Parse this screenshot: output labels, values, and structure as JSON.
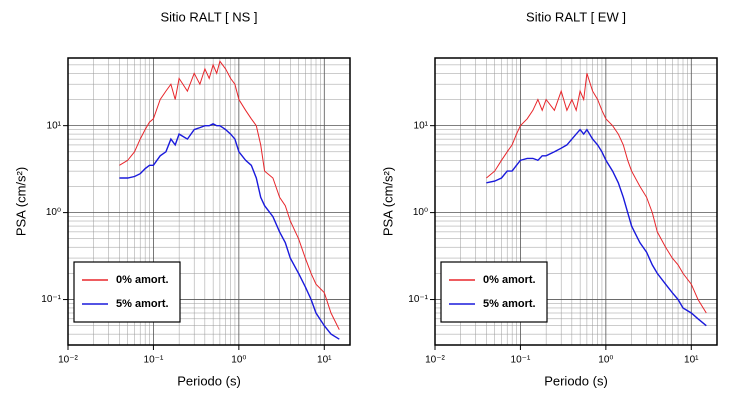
{
  "chart_data": [
    {
      "type": "line",
      "title": "Sitio RALT [ NS ]",
      "x_label": "Periodo (s)",
      "y_label": "PSA (cm/s²)",
      "x": [
        0.04,
        0.05,
        0.06,
        0.07,
        0.08,
        0.09,
        0.1,
        0.12,
        0.14,
        0.16,
        0.18,
        0.2,
        0.25,
        0.3,
        0.35,
        0.4,
        0.45,
        0.5,
        0.55,
        0.6,
        0.7,
        0.8,
        0.9,
        1.0,
        1.2,
        1.4,
        1.6,
        1.8,
        2,
        2.5,
        3,
        3.5,
        4,
        5,
        6,
        7,
        8,
        10,
        12,
        15
      ],
      "series": [
        {
          "name": "0% amort.",
          "color": "#e8262b",
          "values": [
            3.5,
            4,
            5,
            7,
            9,
            11,
            12,
            20,
            25,
            30,
            20,
            35,
            25,
            40,
            30,
            45,
            35,
            50,
            40,
            55,
            45,
            35,
            30,
            20,
            15,
            12,
            10,
            6,
            3,
            2.5,
            1.5,
            1.2,
            0.8,
            0.5,
            0.3,
            0.2,
            0.15,
            0.12,
            0.07,
            0.045
          ]
        },
        {
          "name": "5% amort.",
          "color": "#1a1adc",
          "values": [
            2.5,
            2.5,
            2.6,
            2.8,
            3.2,
            3.5,
            3.5,
            4.5,
            5,
            7,
            6,
            8,
            7,
            9,
            9.5,
            10,
            10,
            10.5,
            10,
            10,
            9,
            8,
            7,
            5,
            4,
            3.5,
            2.5,
            1.5,
            1.2,
            0.9,
            0.6,
            0.45,
            0.3,
            0.2,
            0.14,
            0.1,
            0.07,
            0.05,
            0.04,
            0.035
          ]
        }
      ],
      "log_x": true,
      "log_y": true,
      "grid": true,
      "legend": "lower left",
      "xlim": [
        0.01,
        20
      ],
      "ylim": [
        0.03,
        60
      ],
      "xticks": [
        {
          "value": 0.01,
          "label": "10⁻²"
        },
        {
          "value": 0.1,
          "label": "10⁻¹"
        },
        {
          "value": 1,
          "label": "10⁰"
        },
        {
          "value": 10,
          "label": "10¹"
        }
      ],
      "yticks": [
        {
          "value": 0.1,
          "label": "10⁻¹"
        },
        {
          "value": 1,
          "label": "10⁰"
        },
        {
          "value": 10,
          "label": "10¹"
        }
      ],
      "xminor": [
        0.02,
        0.03,
        0.04,
        0.05,
        0.06,
        0.07,
        0.08,
        0.09,
        0.2,
        0.3,
        0.4,
        0.5,
        0.6,
        0.7,
        0.8,
        0.9,
        2,
        3,
        4,
        5,
        6,
        7,
        8,
        9
      ],
      "yminor": [
        0.04,
        0.05,
        0.06,
        0.07,
        0.08,
        0.09,
        0.2,
        0.3,
        0.4,
        0.5,
        0.6,
        0.7,
        0.8,
        0.9,
        2,
        3,
        4,
        5,
        6,
        7,
        8,
        9,
        20,
        30,
        40,
        50
      ]
    },
    {
      "type": "line",
      "title": "Sitio RALT [ EW ]",
      "x_label": "Periodo (s)",
      "y_label": "PSA (cm/s²)",
      "x": [
        0.04,
        0.05,
        0.06,
        0.07,
        0.08,
        0.09,
        0.1,
        0.12,
        0.14,
        0.16,
        0.18,
        0.2,
        0.25,
        0.3,
        0.35,
        0.4,
        0.45,
        0.5,
        0.55,
        0.6,
        0.7,
        0.8,
        0.9,
        1.0,
        1.2,
        1.4,
        1.6,
        1.8,
        2,
        2.5,
        3,
        3.5,
        4,
        5,
        6,
        7,
        8,
        10,
        12,
        15
      ],
      "series": [
        {
          "name": "0% amort.",
          "color": "#e8262b",
          "values": [
            2.5,
            3,
            4,
            5,
            6,
            8,
            10,
            12,
            15,
            20,
            15,
            20,
            15,
            25,
            15,
            20,
            15,
            25,
            20,
            40,
            25,
            20,
            15,
            12,
            10,
            8,
            6,
            4,
            3,
            2,
            1.5,
            1.0,
            0.6,
            0.4,
            0.3,
            0.25,
            0.2,
            0.15,
            0.1,
            0.07
          ]
        },
        {
          "name": "5% amort.",
          "color": "#1a1adc",
          "values": [
            2.2,
            2.3,
            2.5,
            3,
            3,
            3.5,
            4,
            4.2,
            4.2,
            4,
            4.5,
            4.5,
            5,
            5.5,
            6,
            7,
            8,
            9,
            8,
            9,
            7,
            6,
            5,
            4,
            3,
            2.2,
            1.5,
            1.0,
            0.7,
            0.45,
            0.35,
            0.25,
            0.2,
            0.15,
            0.12,
            0.1,
            0.08,
            0.07,
            0.06,
            0.05
          ]
        }
      ],
      "log_x": true,
      "log_y": true,
      "grid": true,
      "legend": "lower left",
      "xlim": [
        0.01,
        20
      ],
      "ylim": [
        0.03,
        60
      ],
      "xticks": [
        {
          "value": 0.01,
          "label": "10⁻²"
        },
        {
          "value": 0.1,
          "label": "10⁻¹"
        },
        {
          "value": 1,
          "label": "10⁰"
        },
        {
          "value": 10,
          "label": "10¹"
        }
      ],
      "yticks": [
        {
          "value": 0.1,
          "label": "10⁻¹"
        },
        {
          "value": 1,
          "label": "10⁰"
        },
        {
          "value": 10,
          "label": "10¹"
        }
      ],
      "xminor": [
        0.02,
        0.03,
        0.04,
        0.05,
        0.06,
        0.07,
        0.08,
        0.09,
        0.2,
        0.3,
        0.4,
        0.5,
        0.6,
        0.7,
        0.8,
        0.9,
        2,
        3,
        4,
        5,
        6,
        7,
        8,
        9
      ],
      "yminor": [
        0.04,
        0.05,
        0.06,
        0.07,
        0.08,
        0.09,
        0.2,
        0.3,
        0.4,
        0.5,
        0.6,
        0.7,
        0.8,
        0.9,
        2,
        3,
        4,
        5,
        6,
        7,
        8,
        9,
        20,
        30,
        40,
        50
      ]
    }
  ]
}
